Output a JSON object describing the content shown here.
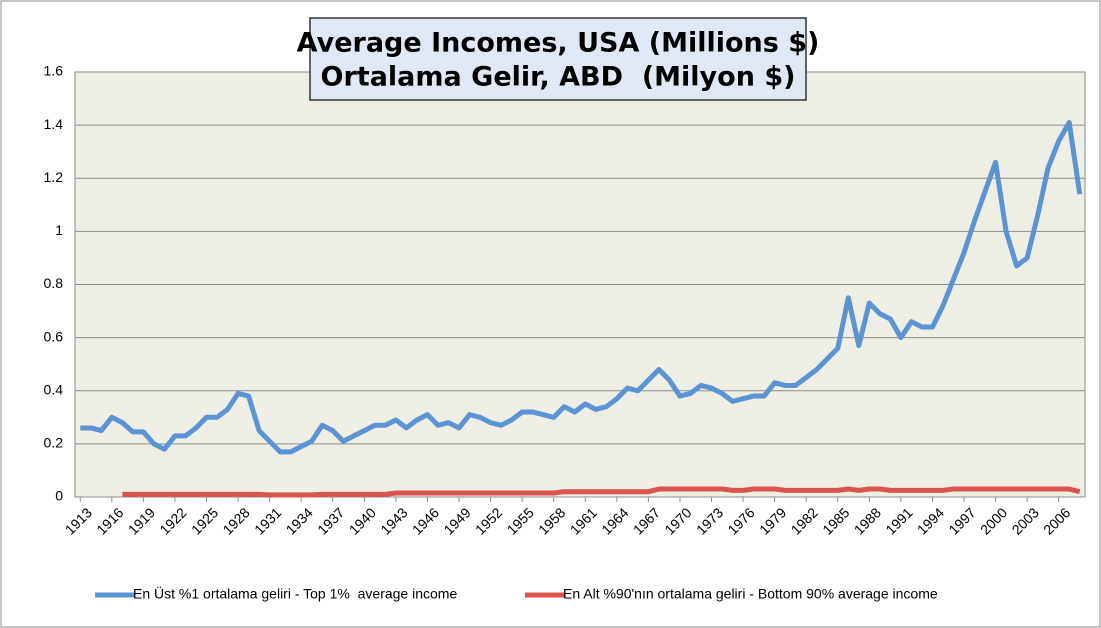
{
  "chart_data": {
    "type": "line",
    "title": [
      "Average Incomes, USA (Millions $)",
      "Ortalama Gelir, ABD  (Milyon $)"
    ],
    "x": [
      1913,
      1914,
      1915,
      1916,
      1917,
      1918,
      1919,
      1920,
      1921,
      1922,
      1923,
      1924,
      1925,
      1926,
      1927,
      1928,
      1929,
      1930,
      1931,
      1932,
      1933,
      1934,
      1935,
      1936,
      1937,
      1938,
      1939,
      1940,
      1941,
      1942,
      1943,
      1944,
      1945,
      1946,
      1947,
      1948,
      1949,
      1950,
      1951,
      1952,
      1953,
      1954,
      1955,
      1956,
      1957,
      1958,
      1959,
      1960,
      1961,
      1962,
      1963,
      1964,
      1965,
      1966,
      1967,
      1968,
      1969,
      1970,
      1971,
      1972,
      1973,
      1974,
      1975,
      1976,
      1977,
      1978,
      1979,
      1980,
      1981,
      1982,
      1983,
      1984,
      1985,
      1986,
      1987,
      1988,
      1989,
      1990,
      1991,
      1992,
      1993,
      1994,
      1995,
      1996,
      1997,
      1998,
      1999,
      2000,
      2001,
      2002,
      2003,
      2004,
      2005,
      2006,
      2007,
      2008
    ],
    "series": [
      {
        "name": "En Üst %1 ortalama geliri - Top 1%  average income",
        "color": "#5b93d3",
        "values": [
          0.26,
          0.26,
          0.25,
          0.3,
          0.28,
          0.245,
          0.245,
          0.2,
          0.18,
          0.23,
          0.23,
          0.26,
          0.3,
          0.3,
          0.33,
          0.39,
          0.38,
          0.25,
          0.21,
          0.17,
          0.17,
          0.19,
          0.21,
          0.27,
          0.25,
          0.21,
          0.23,
          0.25,
          0.27,
          0.27,
          0.29,
          0.26,
          0.29,
          0.31,
          0.27,
          0.28,
          0.26,
          0.31,
          0.3,
          0.28,
          0.27,
          0.29,
          0.32,
          0.32,
          0.31,
          0.3,
          0.34,
          0.32,
          0.35,
          0.33,
          0.34,
          0.37,
          0.41,
          0.4,
          0.44,
          0.48,
          0.44,
          0.38,
          0.39,
          0.42,
          0.41,
          0.39,
          0.36,
          0.37,
          0.38,
          0.38,
          0.43,
          0.42,
          0.42,
          0.45,
          0.48,
          0.52,
          0.56,
          0.75,
          0.57,
          0.73,
          0.69,
          0.67,
          0.6,
          0.66,
          0.64,
          0.64,
          0.72,
          0.82,
          0.92,
          1.04,
          1.15,
          1.26,
          1.0,
          0.87,
          0.9,
          1.06,
          1.24,
          1.34,
          1.41,
          1.14
        ]
      },
      {
        "name": "En Alt %90'nın ortalama geliri - Bottom 90% average income",
        "color": "#d9534f",
        "values": [
          null,
          null,
          null,
          null,
          0.01,
          0.01,
          0.01,
          0.01,
          0.01,
          0.01,
          0.01,
          0.01,
          0.01,
          0.01,
          0.01,
          0.01,
          0.01,
          0.01,
          0.008,
          0.008,
          0.008,
          0.008,
          0.008,
          0.01,
          0.01,
          0.01,
          0.01,
          0.01,
          0.01,
          0.01,
          0.015,
          0.015,
          0.015,
          0.015,
          0.015,
          0.015,
          0.015,
          0.015,
          0.015,
          0.015,
          0.015,
          0.015,
          0.015,
          0.015,
          0.015,
          0.015,
          0.02,
          0.02,
          0.02,
          0.02,
          0.02,
          0.02,
          0.02,
          0.02,
          0.02,
          0.03,
          0.03,
          0.03,
          0.03,
          0.03,
          0.03,
          0.03,
          0.025,
          0.025,
          0.03,
          0.03,
          0.03,
          0.025,
          0.025,
          0.025,
          0.025,
          0.025,
          0.025,
          0.03,
          0.025,
          0.03,
          0.03,
          0.025,
          0.025,
          0.025,
          0.025,
          0.025,
          0.025,
          0.03,
          0.03,
          0.03,
          0.03,
          0.03,
          0.03,
          0.03,
          0.03,
          0.03,
          0.03,
          0.03,
          0.03,
          0.02
        ]
      }
    ],
    "xlim": [
      1912.5,
      2008.5
    ],
    "xticks": [
      1913,
      1916,
      1919,
      1922,
      1925,
      1928,
      1931,
      1934,
      1937,
      1940,
      1943,
      1946,
      1949,
      1952,
      1955,
      1958,
      1961,
      1964,
      1967,
      1970,
      1973,
      1976,
      1979,
      1982,
      1985,
      1988,
      1991,
      1994,
      1997,
      2000,
      2003,
      2006
    ],
    "ylim": [
      0,
      1.6
    ],
    "yticks": [
      0,
      0.2,
      0.4,
      0.6,
      0.8,
      1,
      1.2,
      1.4,
      1.6
    ],
    "grid": true,
    "legend": "bottom"
  }
}
